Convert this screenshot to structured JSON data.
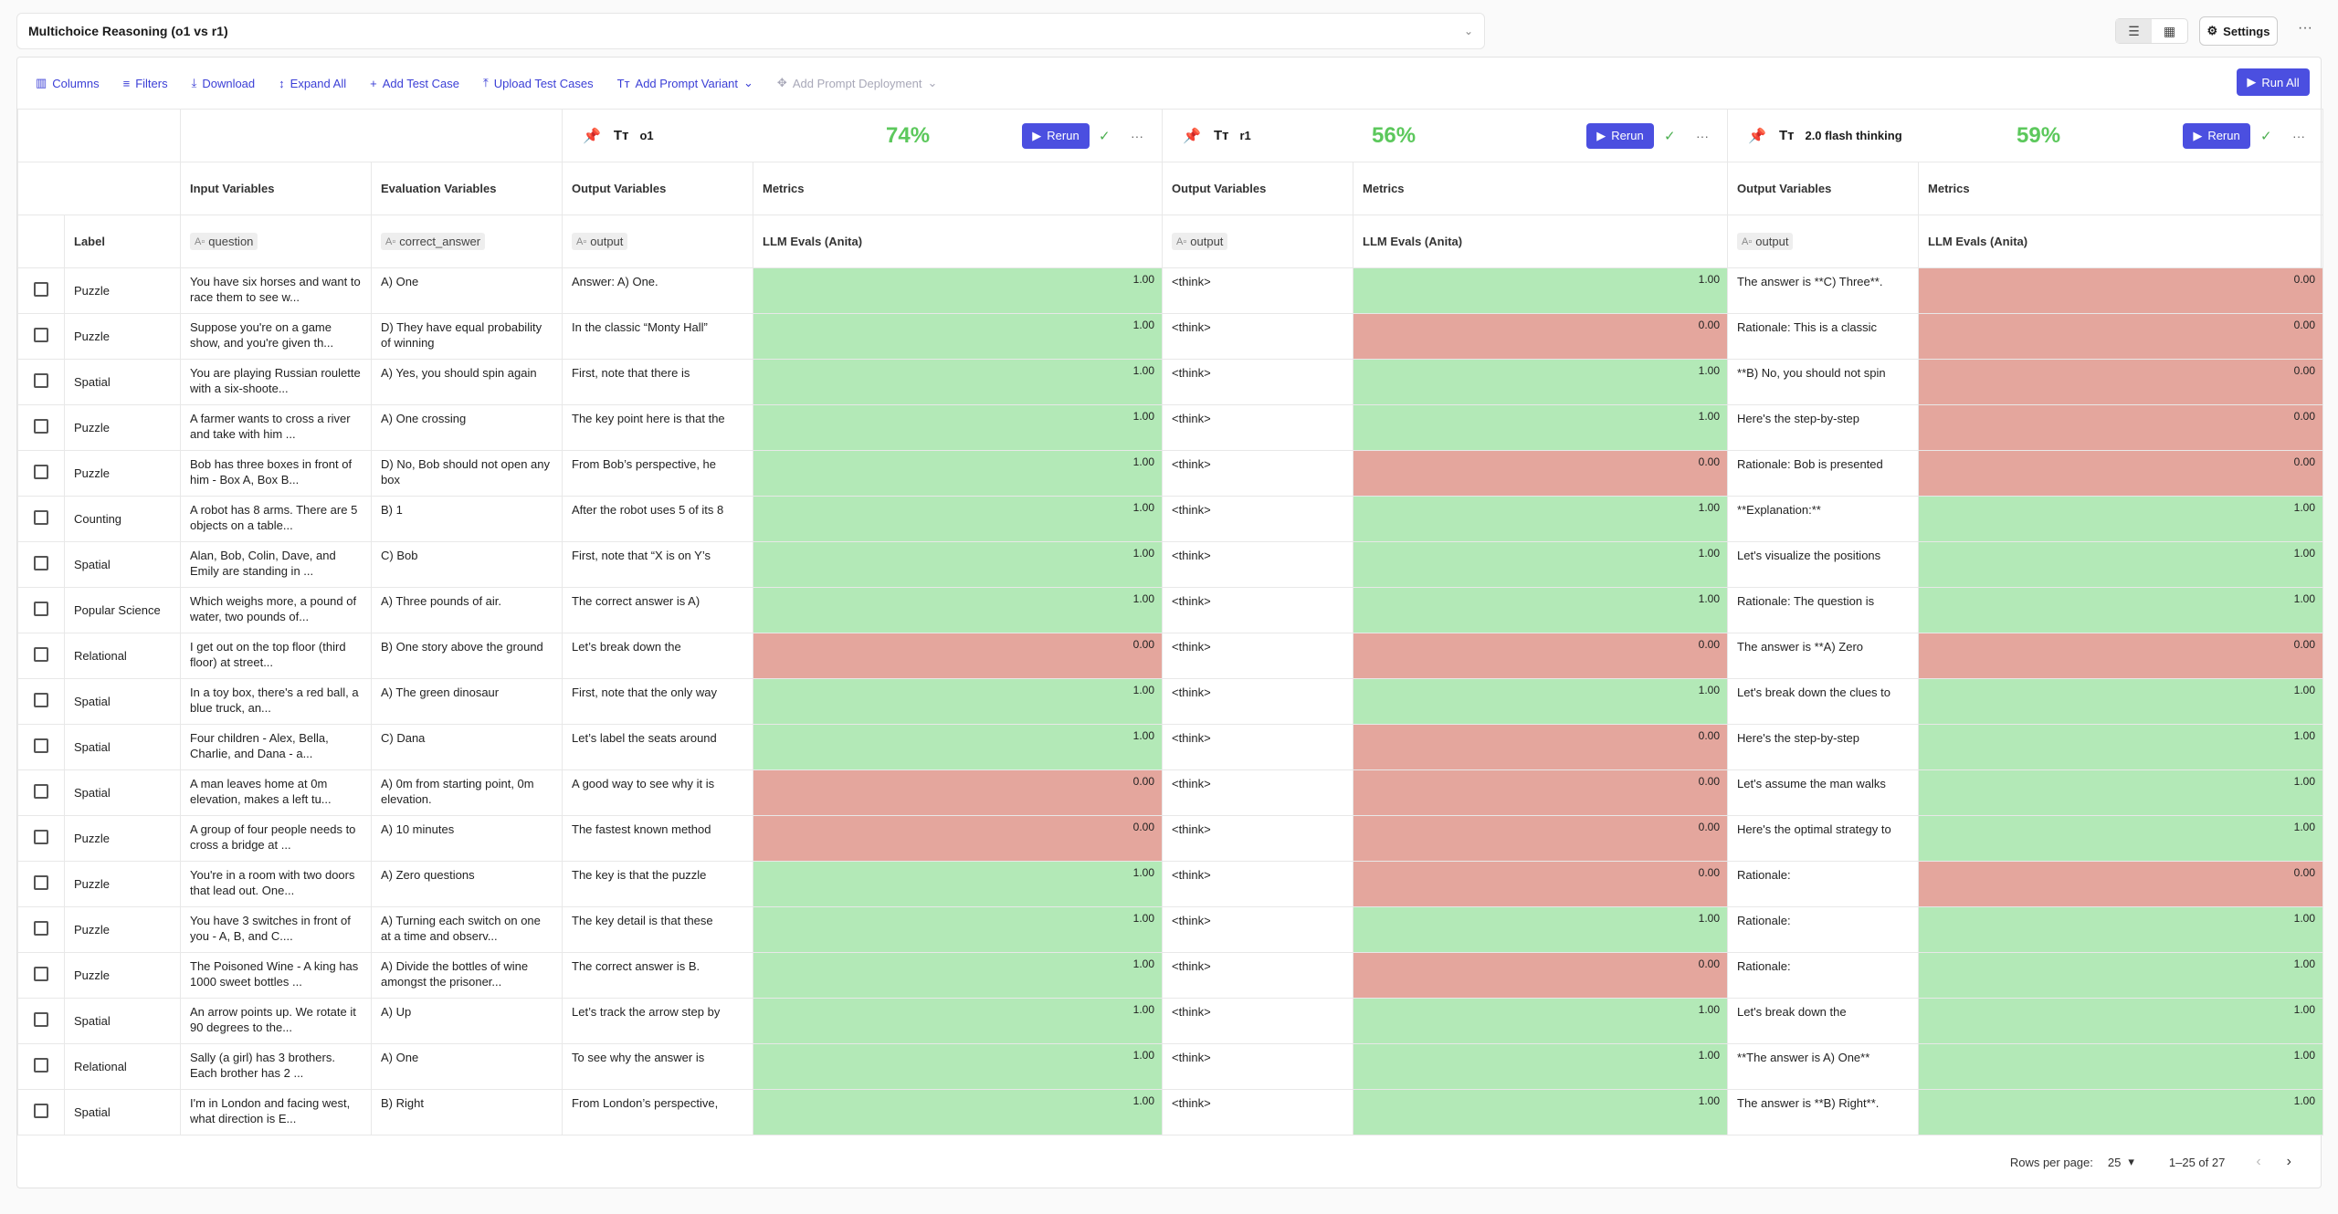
{
  "header": {
    "title": "Multichoice Reasoning (o1 vs r1)",
    "settings_label": "Settings",
    "view_icons": [
      "list-view-icon",
      "table-view-icon"
    ]
  },
  "toolbar": {
    "columns": "Columns",
    "filters": "Filters",
    "download": "Download",
    "expand_all": "Expand All",
    "add_test_case": "Add Test Case",
    "upload_test_cases": "Upload Test Cases",
    "add_prompt_variant": "Add Prompt Variant",
    "add_prompt_deployment": "Add Prompt Deployment",
    "run_all": "Run All"
  },
  "variants": [
    {
      "name": "o1",
      "score": "74%",
      "rerun": "Rerun",
      "pinned": true
    },
    {
      "name": "r1",
      "score": "56%",
      "rerun": "Rerun",
      "pinned": false
    },
    {
      "name": "2.0 flash thinking",
      "score": "59%",
      "rerun": "Rerun",
      "pinned": false
    }
  ],
  "column_groups": {
    "input": "Input Variables",
    "evaluation": "Evaluation Variables",
    "output": "Output Variables",
    "metrics": "Metrics"
  },
  "fields": {
    "label": "Label",
    "question": "question",
    "correct_answer": "correct_answer",
    "output": "output",
    "metric_name": "LLM Evals (Anita)"
  },
  "colors": {
    "accent": "#4b4fe0",
    "pass": "#b3e9b7",
    "fail": "#e4a69d",
    "score": "#5cc85c"
  },
  "rows": [
    {
      "label": "Puzzle",
      "question": "You have six horses and want to race them to see w...",
      "answer": "A) One",
      "o1": "Answer: A) One.",
      "o1_score": "1.00",
      "r1": "<think>",
      "r1_score": "1.00",
      "fl": "The answer is **C) Three**.",
      "fl_score": "0.00"
    },
    {
      "label": "Puzzle",
      "question": "Suppose you're on a game show, and you're given th...",
      "answer": "D) They have equal probability of winning",
      "o1": "In the classic “Monty Hall”",
      "o1_score": "1.00",
      "r1": "<think>",
      "r1_score": "0.00",
      "fl": "Rationale: This is a classic",
      "fl_score": "0.00"
    },
    {
      "label": "Spatial",
      "question": "You are playing Russian roulette with a six-shoote...",
      "answer": "A) Yes, you should spin again",
      "o1": "First, note that there is",
      "o1_score": "1.00",
      "r1": "<think>",
      "r1_score": "1.00",
      "fl": "**B) No, you should not spin",
      "fl_score": "0.00"
    },
    {
      "label": "Puzzle",
      "question": "A farmer wants to cross a river and take with him ...",
      "answer": "A) One crossing",
      "o1": "The key point here is that the",
      "o1_score": "1.00",
      "r1": "<think>",
      "r1_score": "1.00",
      "fl": "Here's the step-by-step",
      "fl_score": "0.00"
    },
    {
      "label": "Puzzle",
      "question": "Bob has three boxes in front of him - Box A, Box B...",
      "answer": "D) No, Bob should not open any box",
      "o1": "From Bob’s perspective, he",
      "o1_score": "1.00",
      "r1": "<think>",
      "r1_score": "0.00",
      "fl": "Rationale: Bob is presented",
      "fl_score": "0.00"
    },
    {
      "label": "Counting",
      "question": "A robot has 8 arms. There are 5 objects on a table...",
      "answer": "B) 1",
      "o1": "After the robot uses 5 of its 8",
      "o1_score": "1.00",
      "r1": "<think>",
      "r1_score": "1.00",
      "fl": "**Explanation:**",
      "fl_score": "1.00"
    },
    {
      "label": "Spatial",
      "question": "Alan, Bob, Colin, Dave, and Emily are standing in ...",
      "answer": "C) Bob",
      "o1": "First, note that “X is on Y’s",
      "o1_score": "1.00",
      "r1": "<think>",
      "r1_score": "1.00",
      "fl": "Let's visualize the positions",
      "fl_score": "1.00"
    },
    {
      "label": "Popular Science",
      "question": "Which weighs more, a pound of water, two pounds of...",
      "answer": "A) Three pounds of air.",
      "o1": "The correct answer is A)",
      "o1_score": "1.00",
      "r1": "<think>",
      "r1_score": "1.00",
      "fl": "Rationale: The question is",
      "fl_score": "1.00"
    },
    {
      "label": "Relational",
      "question": "I get out on the top floor (third floor) at street...",
      "answer": "B) One story above the ground",
      "o1": "Let’s break down the",
      "o1_score": "0.00",
      "r1": "<think>",
      "r1_score": "0.00",
      "fl": "The answer is **A) Zero",
      "fl_score": "0.00"
    },
    {
      "label": "Spatial",
      "question": "In a toy box, there's a red ball, a blue truck, an...",
      "answer": "A) The green dinosaur",
      "o1": "First, note that the only way",
      "o1_score": "1.00",
      "r1": "<think>",
      "r1_score": "1.00",
      "fl": "Let's break down the clues to",
      "fl_score": "1.00"
    },
    {
      "label": "Spatial",
      "question": "Four children - Alex, Bella, Charlie, and Dana - a...",
      "answer": "C) Dana",
      "o1": "Let’s label the seats around",
      "o1_score": "1.00",
      "r1": "<think>",
      "r1_score": "0.00",
      "fl": "Here's the step-by-step",
      "fl_score": "1.00"
    },
    {
      "label": "Spatial",
      "question": "A man leaves home at 0m elevation, makes a left tu...",
      "answer": "A) 0m from starting point, 0m elevation.",
      "o1": "A good way to see why it is",
      "o1_score": "0.00",
      "r1": "<think>",
      "r1_score": "0.00",
      "fl": "Let's assume the man walks",
      "fl_score": "1.00"
    },
    {
      "label": "Puzzle",
      "question": "A group of four people needs to cross a bridge at ...",
      "answer": "A) 10 minutes",
      "o1": "The fastest known method",
      "o1_score": "0.00",
      "r1": "<think>",
      "r1_score": "0.00",
      "fl": "Here's the optimal strategy to",
      "fl_score": "1.00"
    },
    {
      "label": "Puzzle",
      "question": "You're in a room with two doors that lead out. One...",
      "answer": "A) Zero questions",
      "o1": "The key is that the puzzle",
      "o1_score": "1.00",
      "r1": "<think>",
      "r1_score": "0.00",
      "fl": "Rationale:",
      "fl_score": "0.00"
    },
    {
      "label": "Puzzle",
      "question": "You have 3 switches in front of you - A, B, and C....",
      "answer": "A) Turning each switch on one at a time and observ...",
      "o1": "The key detail is that these",
      "o1_score": "1.00",
      "r1": "<think>",
      "r1_score": "1.00",
      "fl": "Rationale:",
      "fl_score": "1.00"
    },
    {
      "label": "Puzzle",
      "question": "The Poisoned Wine - A king has 1000 sweet bottles ...",
      "answer": "A) Divide the bottles of wine amongst the prisoner...",
      "o1": "The correct answer is B.",
      "o1_score": "1.00",
      "r1": "<think>",
      "r1_score": "0.00",
      "fl": "Rationale:",
      "fl_score": "1.00"
    },
    {
      "label": "Spatial",
      "question": "An arrow points up. We rotate it 90 degrees to the...",
      "answer": "A) Up",
      "o1": "Let’s track the arrow step by",
      "o1_score": "1.00",
      "r1": "<think>",
      "r1_score": "1.00",
      "fl": "Let's break down the",
      "fl_score": "1.00"
    },
    {
      "label": "Relational",
      "question": "Sally (a girl) has 3 brothers. Each brother has 2 ...",
      "answer": "A) One",
      "o1": "To see why the answer is",
      "o1_score": "1.00",
      "r1": "<think>",
      "r1_score": "1.00",
      "fl": "**The answer is A) One**",
      "fl_score": "1.00"
    },
    {
      "label": "Spatial",
      "question": "I'm in London and facing west, what direction is E...",
      "answer": "B) Right",
      "o1": "From London’s perspective,",
      "o1_score": "1.00",
      "r1": "<think>",
      "r1_score": "1.00",
      "fl": "The answer is **B) Right**.",
      "fl_score": "1.00"
    }
  ],
  "pagination": {
    "rows_per_page_label": "Rows per page:",
    "rows_per_page": "25",
    "range": "1–25 of 27"
  }
}
